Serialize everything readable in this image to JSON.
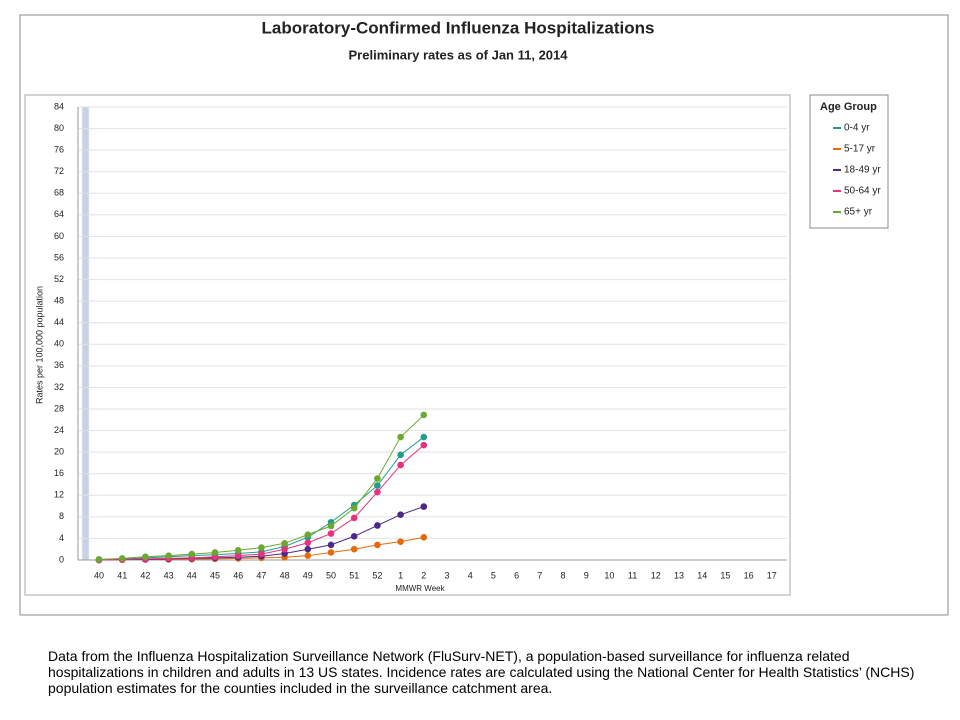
{
  "chart_data": {
    "type": "line",
    "title": "Laboratory-Confirmed Influenza Hospitalizations",
    "subtitle": "Preliminary rates as of Jan 11, 2014",
    "x_label": "MMWR Week",
    "y_label": "Rates per 100,000 population",
    "legend_title": "Age Group",
    "legend": "right",
    "grid": true,
    "categories": [
      "40",
      "41",
      "42",
      "43",
      "44",
      "45",
      "46",
      "47",
      "48",
      "49",
      "50",
      "51",
      "52",
      "1",
      "2",
      "3",
      "4",
      "5",
      "6",
      "7",
      "8",
      "9",
      "10",
      "11",
      "12",
      "13",
      "14",
      "15",
      "16",
      "17"
    ],
    "ylim": [
      0,
      84
    ],
    "yticks": [
      0,
      4,
      8,
      12,
      16,
      20,
      24,
      28,
      32,
      36,
      40,
      44,
      48,
      52,
      56,
      60,
      64,
      68,
      72,
      76,
      80,
      84
    ],
    "series": [
      {
        "name": "0-4 yr",
        "color": "#1f9e89",
        "values": [
          0.1,
          0.2,
          0.4,
          0.6,
          0.8,
          1.0,
          1.2,
          1.5,
          2.5,
          4.2,
          7.0,
          10.2,
          13.8,
          19.5,
          22.8,
          null,
          null,
          null,
          null,
          null,
          null,
          null,
          null,
          null,
          null,
          null,
          null,
          null,
          null,
          null
        ]
      },
      {
        "name": "5-17 yr",
        "color": "#e66a0a",
        "values": [
          0,
          0.05,
          0.1,
          0.1,
          0.15,
          0.2,
          0.3,
          0.4,
          0.5,
          0.8,
          1.4,
          2.0,
          2.8,
          3.4,
          4.2,
          null,
          null,
          null,
          null,
          null,
          null,
          null,
          null,
          null,
          null,
          null,
          null,
          null,
          null,
          null
        ]
      },
      {
        "name": "18-49 yr",
        "color": "#4b2a87",
        "values": [
          0,
          0.1,
          0.1,
          0.2,
          0.3,
          0.4,
          0.5,
          0.7,
          1.2,
          2.0,
          2.8,
          4.4,
          6.4,
          8.4,
          9.9,
          null,
          null,
          null,
          null,
          null,
          null,
          null,
          null,
          null,
          null,
          null,
          null,
          null,
          null,
          null
        ]
      },
      {
        "name": "50-64 yr",
        "color": "#e6327f",
        "values": [
          0,
          0.1,
          0.2,
          0.3,
          0.4,
          0.6,
          0.8,
          1.1,
          2.0,
          3.2,
          4.9,
          7.8,
          12.6,
          17.6,
          21.3,
          null,
          null,
          null,
          null,
          null,
          null,
          null,
          null,
          null,
          null,
          null,
          null,
          null,
          null,
          null
        ]
      },
      {
        "name": "65+ yr",
        "color": "#6aa832",
        "values": [
          0.1,
          0.3,
          0.6,
          0.8,
          1.1,
          1.4,
          1.8,
          2.3,
          3.1,
          4.7,
          6.3,
          9.6,
          15.1,
          22.8,
          26.9,
          null,
          null,
          null,
          null,
          null,
          null,
          null,
          null,
          null,
          null,
          null,
          null,
          null,
          null,
          null
        ]
      }
    ]
  },
  "footnote": "Data from the Influenza  Hospitalization Surveillance  Network (FluSurv-NET),  a population-based surveillance  for influenza related hospitalizations in children and adults in 13 US states. Incidence rates are calculated using the National Center for Health Statistics’ (NCHS) population estimates for the counties included in the surveillance catchment area."
}
